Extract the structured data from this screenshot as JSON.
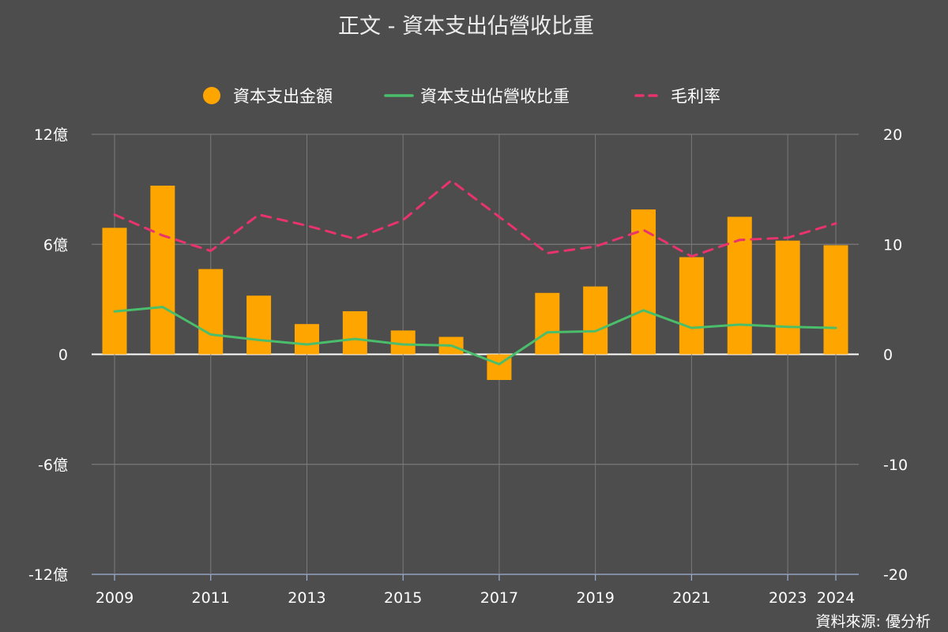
{
  "chart_data": {
    "type": "bar",
    "title": "正文 - 資本支出佔營收比重",
    "source": "資料來源: 優分析",
    "x": [
      2009,
      2010,
      2011,
      2012,
      2013,
      2014,
      2015,
      2016,
      2017,
      2018,
      2019,
      2020,
      2021,
      2022,
      2023,
      2024
    ],
    "x_ticks": [
      "2009",
      "2011",
      "2013",
      "2015",
      "2017",
      "2019",
      "2021",
      "2023",
      "2024"
    ],
    "y_left": {
      "lim": [
        -12,
        12
      ],
      "ticks": [
        12,
        6,
        0,
        -6,
        -12
      ],
      "tick_labels": [
        "12億",
        "6億",
        "0",
        "-6億",
        "-12億"
      ],
      "unit": "億"
    },
    "y_right": {
      "lim": [
        -20,
        20
      ],
      "ticks": [
        20,
        10,
        0,
        -10,
        -20
      ],
      "tick_labels": [
        "20",
        "10",
        "0",
        "-10",
        "-20"
      ]
    },
    "grid": true,
    "legend_position": "top-center",
    "series": [
      {
        "name": "資本支出金額",
        "kind": "bar",
        "axis": "left",
        "color": "#FFA500",
        "values": [
          6.9,
          9.2,
          4.65,
          3.2,
          1.65,
          2.35,
          1.3,
          0.95,
          -1.4,
          3.35,
          3.7,
          7.9,
          5.3,
          7.5,
          6.2,
          5.95
        ]
      },
      {
        "name": "資本支出佔營收比重",
        "kind": "line",
        "axis": "right",
        "color": "#4ABE6A",
        "values": [
          3.9,
          4.3,
          1.8,
          1.3,
          0.9,
          1.4,
          0.9,
          0.8,
          -0.9,
          2.0,
          2.1,
          4.0,
          2.4,
          2.7,
          2.5,
          2.4
        ]
      },
      {
        "name": "毛利率",
        "kind": "line",
        "axis": "right",
        "style": "dashed",
        "color": "#E8336D",
        "values": [
          12.7,
          10.8,
          9.4,
          12.7,
          11.7,
          10.5,
          12.2,
          15.8,
          12.5,
          9.2,
          9.8,
          11.3,
          8.9,
          10.4,
          10.6,
          11.9
        ]
      }
    ]
  }
}
